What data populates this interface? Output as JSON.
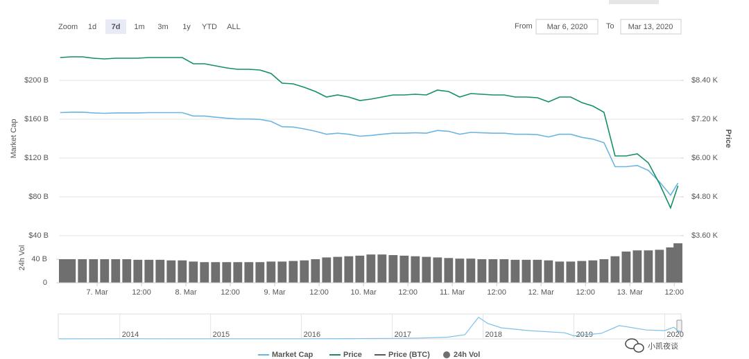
{
  "controls": {
    "zoom_label": "Zoom",
    "zoom_buttons": [
      "1d",
      "7d",
      "1m",
      "3m",
      "1y",
      "YTD",
      "ALL"
    ],
    "selected_zoom": "7d",
    "from_label": "From",
    "from": "Mar 6, 2020",
    "to_label": "To",
    "to": "Mar 13, 2020"
  },
  "watermark": "小凯夜谈",
  "chart_data": [
    {
      "type": "line",
      "x": [
        "2020-03-06T14:00",
        "2020-03-06T17:00",
        "2020-03-06T20:00",
        "2020-03-06T23:00",
        "2020-03-07T02:00",
        "2020-03-07T05:00",
        "2020-03-07T08:00",
        "2020-03-07T11:00",
        "2020-03-07T14:00",
        "2020-03-07T17:00",
        "2020-03-07T20:00",
        "2020-03-07T23:00",
        "2020-03-08T02:00",
        "2020-03-08T05:00",
        "2020-03-08T08:00",
        "2020-03-08T11:00",
        "2020-03-08T14:00",
        "2020-03-08T17:00",
        "2020-03-08T20:00",
        "2020-03-08T23:00",
        "2020-03-09T02:00",
        "2020-03-09T05:00",
        "2020-03-09T08:00",
        "2020-03-09T11:00",
        "2020-03-09T14:00",
        "2020-03-09T17:00",
        "2020-03-09T20:00",
        "2020-03-09T23:00",
        "2020-03-10T02:00",
        "2020-03-10T05:00",
        "2020-03-10T08:00",
        "2020-03-10T11:00",
        "2020-03-10T14:00",
        "2020-03-10T17:00",
        "2020-03-10T20:00",
        "2020-03-10T23:00",
        "2020-03-11T02:00",
        "2020-03-11T05:00",
        "2020-03-11T08:00",
        "2020-03-11T11:00",
        "2020-03-11T14:00",
        "2020-03-11T17:00",
        "2020-03-11T20:00",
        "2020-03-11T23:00",
        "2020-03-12T02:00",
        "2020-03-12T05:00",
        "2020-03-12T08:00",
        "2020-03-12T11:00",
        "2020-03-12T14:00",
        "2020-03-12T17:00",
        "2020-03-12T20:00",
        "2020-03-12T23:00",
        "2020-03-13T02:00",
        "2020-03-13T05:00",
        "2020-03-13T08:00",
        "2020-03-13T11:00",
        "2020-03-13T13:00"
      ],
      "xlim": [
        "2020-03-06T13:40",
        "2020-03-13T13:50"
      ],
      "series": [
        {
          "name": "Market Cap",
          "color": "#6cb4e2",
          "axis": "y",
          "values": [
            166.8,
            167.2,
            167.2,
            166.5,
            166.1,
            166.5,
            166.5,
            166.5,
            166.8,
            166.8,
            166.8,
            166.8,
            163.3,
            163.3,
            162.1,
            161.0,
            160.2,
            160.2,
            159.8,
            157.8,
            152.3,
            151.9,
            150.0,
            147.6,
            144.5,
            145.6,
            144.5,
            142.5,
            143.3,
            144.5,
            145.6,
            145.6,
            146.0,
            145.6,
            148.4,
            147.6,
            144.5,
            146.4,
            146.0,
            145.6,
            145.6,
            144.5,
            144.5,
            144.1,
            141.7,
            144.5,
            144.5,
            141.3,
            139.4,
            135.8,
            111.1,
            111.1,
            112.3,
            107.2,
            95.4,
            81.7,
            94.2
          ]
        },
        {
          "name": "Price",
          "color": "#139063",
          "axis": "y2",
          "values": [
            9107,
            9129,
            9129,
            9086,
            9064,
            9086,
            9086,
            9086,
            9107,
            9107,
            9107,
            9107,
            8914,
            8914,
            8850,
            8786,
            8743,
            8743,
            8721,
            8614,
            8314,
            8293,
            8186,
            8057,
            7886,
            7950,
            7886,
            7779,
            7821,
            7886,
            7950,
            7950,
            7971,
            7950,
            8100,
            8057,
            7886,
            7993,
            7971,
            7950,
            7950,
            7886,
            7886,
            7864,
            7736,
            7886,
            7886,
            7714,
            7607,
            7414,
            6064,
            6064,
            6129,
            5850,
            5207,
            4457,
            5143
          ]
        }
      ],
      "hidden_series": [
        {
          "name": "Price (BTC)",
          "color": "#55585c"
        }
      ],
      "ylim": [
        40,
        240
      ],
      "yticks": [
        {
          "value": 40,
          "label": "$40 B"
        },
        {
          "value": 80,
          "label": "$80 B"
        },
        {
          "value": 120,
          "label": "$120 B"
        },
        {
          "value": 160,
          "label": "$160 B"
        },
        {
          "value": 200,
          "label": "$200 B"
        }
      ],
      "y2lim": [
        3600,
        9600
      ],
      "y2ticks": [
        {
          "value": 3600,
          "label": "$3.60 K"
        },
        {
          "value": 4800,
          "label": "$4.80 K"
        },
        {
          "value": 6000,
          "label": "$6.00 K"
        },
        {
          "value": 7200,
          "label": "$7.20 K"
        },
        {
          "value": 8400,
          "label": "$8.40 K"
        }
      ],
      "y_label": "Market Cap",
      "y2_label": "Price",
      "grid": true
    },
    {
      "type": "bar",
      "x": [
        "2020-03-06T14:00",
        "2020-03-06T17:00",
        "2020-03-06T20:00",
        "2020-03-06T23:00",
        "2020-03-07T02:00",
        "2020-03-07T05:00",
        "2020-03-07T08:00",
        "2020-03-07T11:00",
        "2020-03-07T14:00",
        "2020-03-07T17:00",
        "2020-03-07T20:00",
        "2020-03-07T23:00",
        "2020-03-08T02:00",
        "2020-03-08T05:00",
        "2020-03-08T08:00",
        "2020-03-08T11:00",
        "2020-03-08T14:00",
        "2020-03-08T17:00",
        "2020-03-08T20:00",
        "2020-03-08T23:00",
        "2020-03-09T02:00",
        "2020-03-09T05:00",
        "2020-03-09T08:00",
        "2020-03-09T11:00",
        "2020-03-09T14:00",
        "2020-03-09T17:00",
        "2020-03-09T20:00",
        "2020-03-09T23:00",
        "2020-03-10T02:00",
        "2020-03-10T05:00",
        "2020-03-10T08:00",
        "2020-03-10T11:00",
        "2020-03-10T14:00",
        "2020-03-10T17:00",
        "2020-03-10T20:00",
        "2020-03-10T23:00",
        "2020-03-11T02:00",
        "2020-03-11T05:00",
        "2020-03-11T08:00",
        "2020-03-11T11:00",
        "2020-03-11T14:00",
        "2020-03-11T17:00",
        "2020-03-11T20:00",
        "2020-03-11T23:00",
        "2020-03-12T02:00",
        "2020-03-12T05:00",
        "2020-03-12T08:00",
        "2020-03-12T11:00",
        "2020-03-12T14:00",
        "2020-03-12T17:00",
        "2020-03-12T20:00",
        "2020-03-12T23:00",
        "2020-03-13T02:00",
        "2020-03-13T05:00",
        "2020-03-13T08:00",
        "2020-03-13T11:00",
        "2020-03-13T13:00"
      ],
      "xlim": [
        "2020-03-06T13:40",
        "2020-03-13T13:50"
      ],
      "xticks": [
        {
          "value": "2020-03-07T00:00",
          "label": "7. Mar"
        },
        {
          "value": "2020-03-07T12:00",
          "label": "12:00"
        },
        {
          "value": "2020-03-08T00:00",
          "label": "8. Mar"
        },
        {
          "value": "2020-03-08T12:00",
          "label": "12:00"
        },
        {
          "value": "2020-03-09T00:00",
          "label": "9. Mar"
        },
        {
          "value": "2020-03-09T12:00",
          "label": "12:00"
        },
        {
          "value": "2020-03-10T00:00",
          "label": "10. Mar"
        },
        {
          "value": "2020-03-10T12:00",
          "label": "12:00"
        },
        {
          "value": "2020-03-11T00:00",
          "label": "11. Mar"
        },
        {
          "value": "2020-03-11T12:00",
          "label": "12:00"
        },
        {
          "value": "2020-03-12T00:00",
          "label": "12. Mar"
        },
        {
          "value": "2020-03-12T12:00",
          "label": "12:00"
        },
        {
          "value": "2020-03-13T00:00",
          "label": "13. Mar"
        },
        {
          "value": "2020-03-13T12:00",
          "label": "12:00"
        }
      ],
      "series": [
        {
          "name": "24h Vol",
          "color": "#6f6f6f",
          "values": [
            40,
            40,
            40,
            40,
            40,
            40,
            40,
            39,
            39,
            39,
            38,
            38,
            36,
            35,
            35,
            35,
            35,
            35,
            35,
            36,
            36,
            37,
            38,
            40,
            43,
            44,
            45,
            46,
            48,
            48,
            47,
            46,
            45,
            44,
            43,
            42,
            41,
            41,
            40,
            40,
            40,
            39,
            39,
            39,
            38,
            36,
            36,
            37,
            38,
            40,
            45,
            53,
            55,
            55,
            56,
            60,
            67
          ]
        }
      ],
      "ylim": [
        0,
        80
      ],
      "yticks": [
        0,
        {
          "value": 40,
          "label": "40 B"
        }
      ],
      "y_label": "24h Vol"
    },
    {
      "type": "line",
      "x": [
        2013.33,
        2014,
        2014.5,
        2015,
        2015.5,
        2016,
        2016.5,
        2017,
        2017.3,
        2017.6,
        2017.8,
        2017.95,
        2018.05,
        2018.2,
        2018.5,
        2018.9,
        2019.0,
        2019.3,
        2019.5,
        2019.8,
        2020.0,
        2020.1,
        2020.18
      ],
      "values": [
        2,
        8,
        6,
        4,
        4,
        6,
        10,
        18,
        30,
        60,
        150,
        780,
        560,
        400,
        300,
        220,
        110,
        200,
        480,
        320,
        300,
        420,
        200
      ],
      "color": "#7cc0e8",
      "xlim": [
        2013.33,
        2020.18
      ],
      "xticks": [
        2014,
        2015,
        2016,
        2017,
        2018,
        2019,
        2020
      ],
      "ylim": [
        0,
        900
      ]
    }
  ]
}
